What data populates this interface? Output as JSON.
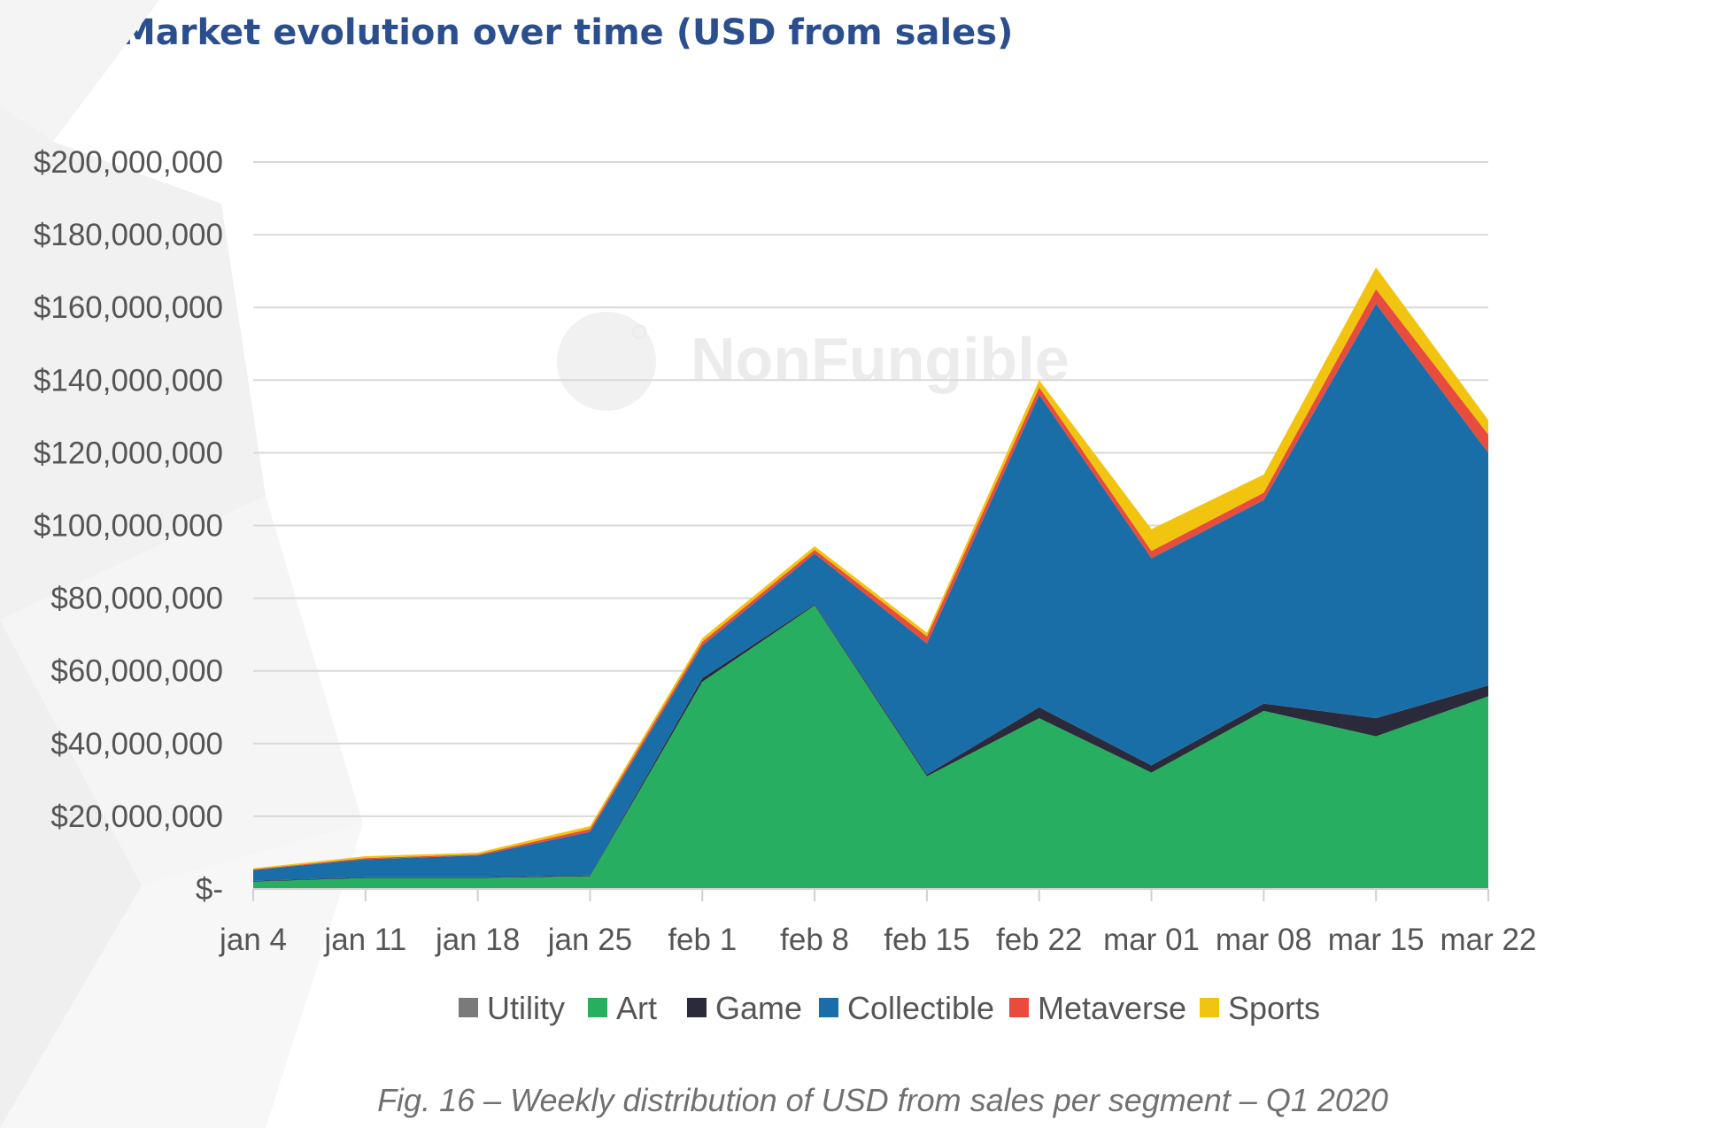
{
  "chart_data": {
    "type": "area",
    "stacked": true,
    "title": "Market evolution over time (USD from sales)",
    "caption": "Fig. 16 – Weekly distribution of USD from sales per segment – Q1 2020",
    "watermark": "NonFungible",
    "xlabel": "",
    "ylabel": "",
    "ylim": [
      0,
      200000000
    ],
    "grid": true,
    "legend_position": "bottom",
    "categories": [
      "jan 4",
      "jan 11",
      "jan 18",
      "jan 25",
      "feb 1",
      "feb 8",
      "feb 15",
      "feb 22",
      "mar 01",
      "mar 08",
      "mar 15",
      "mar 22"
    ],
    "y_ticks": [
      {
        "value": 0,
        "label": "$-"
      },
      {
        "value": 20000000,
        "label": "$20,000,000"
      },
      {
        "value": 40000000,
        "label": "$40,000,000"
      },
      {
        "value": 60000000,
        "label": "$60,000,000"
      },
      {
        "value": 80000000,
        "label": "$80,000,000"
      },
      {
        "value": 100000000,
        "label": "$100,000,000"
      },
      {
        "value": 120000000,
        "label": "$120,000,000"
      },
      {
        "value": 140000000,
        "label": "$140,000,000"
      },
      {
        "value": 160000000,
        "label": "$160,000,000"
      },
      {
        "value": 180000000,
        "label": "$180,000,000"
      },
      {
        "value": 200000000,
        "label": "$200,000,000"
      }
    ],
    "series": [
      {
        "name": "Utility",
        "color": "#7a7a7a",
        "values": [
          0,
          0,
          0,
          0,
          0,
          0,
          0,
          0,
          0,
          0,
          0,
          0
        ]
      },
      {
        "name": "Art",
        "color": "#27ae60",
        "values": [
          2000000,
          3000000,
          3000000,
          3500000,
          57000000,
          78000000,
          31000000,
          47000000,
          32000000,
          49000000,
          42000000,
          53000000
        ]
      },
      {
        "name": "Game",
        "color": "#2a2a3a",
        "values": [
          200000,
          200000,
          200000,
          200000,
          1000000,
          300000,
          500000,
          3000000,
          2000000,
          2000000,
          5000000,
          3000000
        ]
      },
      {
        "name": "Collectible",
        "color": "#1a6ea8",
        "values": [
          3000000,
          5000000,
          6000000,
          12000000,
          9000000,
          14000000,
          36000000,
          86000000,
          57000000,
          56000000,
          114000000,
          64000000
        ]
      },
      {
        "name": "Metaverse",
        "color": "#e74c3c",
        "values": [
          200000,
          300000,
          300000,
          800000,
          1000000,
          1000000,
          2000000,
          2000000,
          2000000,
          2000000,
          4000000,
          5000000
        ]
      },
      {
        "name": "Sports",
        "color": "#f1c40f",
        "values": [
          300000,
          500000,
          500000,
          800000,
          1000000,
          1000000,
          1000000,
          2000000,
          6000000,
          5000000,
          6000000,
          4000000
        ]
      }
    ]
  }
}
